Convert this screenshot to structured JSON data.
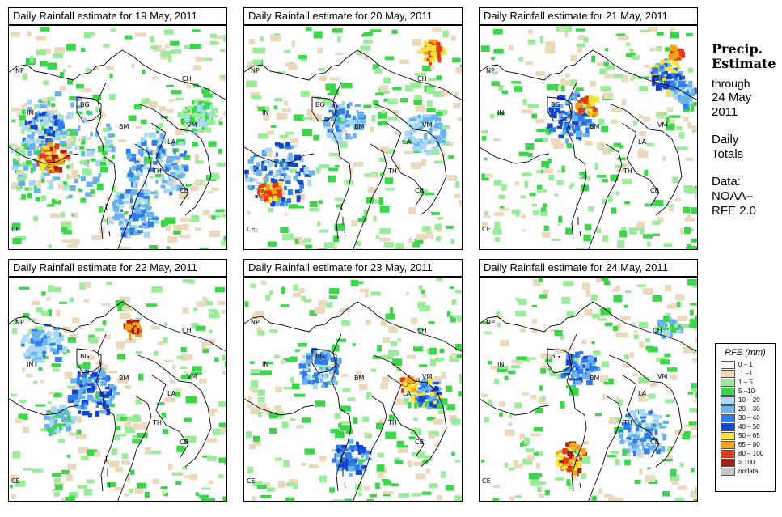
{
  "panels": [
    {
      "title": "Daily Rainfall estimate for  19 May, 2011"
    },
    {
      "title": "Daily Rainfall estimate for  20 May, 2011"
    },
    {
      "title": "Daily Rainfall estimate for  21 May, 2011"
    },
    {
      "title": "Daily Rainfall estimate for  22 May, 2011"
    },
    {
      "title": "Daily Rainfall estimate for  23 May, 2011"
    },
    {
      "title": "Daily Rainfall estimate for  24 May, 2011"
    }
  ],
  "country_labels": [
    "NP",
    "CH",
    "IN",
    "BG",
    "BM",
    "VM",
    "LA",
    "TH",
    "CB",
    "CE"
  ],
  "sidebar": {
    "title_line1": "Precip.",
    "title_line2": "Estimate",
    "through_label": "through",
    "end_date": "24 May",
    "end_year": "2011",
    "totals_line1": "Daily",
    "totals_line2": "Totals",
    "data_label": "Data:",
    "source_line1": "NOAA–",
    "source_line2": "RFE 2.0"
  },
  "legend": {
    "title": "RFE (mm)",
    "items": [
      {
        "label": "0 – 1",
        "color": "#ffffff"
      },
      {
        "label": ".1 –1",
        "color": "#ead9bd"
      },
      {
        "label": "1 – 5",
        "color": "#9aec9a"
      },
      {
        "label": "5 –10",
        "color": "#3cd64a"
      },
      {
        "label": "10 – 20",
        "color": "#a8d8f5"
      },
      {
        "label": "20 – 30",
        "color": "#6ab2ee"
      },
      {
        "label": "30 – 40",
        "color": "#2f7ee8"
      },
      {
        "label": "40 – 50",
        "color": "#1545cf"
      },
      {
        "label": "50 – 65",
        "color": "#f6e23c"
      },
      {
        "label": "65 – 80",
        "color": "#f6a21a"
      },
      {
        "label": "80 – 100",
        "color": "#e23a12"
      },
      {
        "label": "> 100",
        "color": "#aa1c14"
      },
      {
        "label": "nodata",
        "color": "#c6c6c6"
      }
    ]
  }
}
